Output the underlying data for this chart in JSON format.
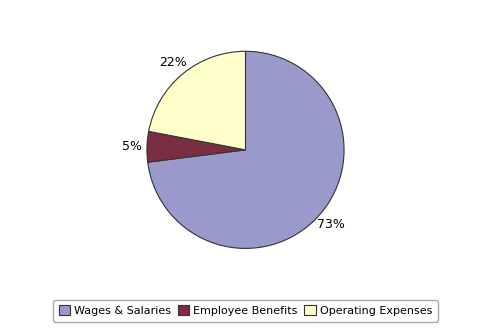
{
  "labels": [
    "Wages & Salaries",
    "Employee Benefits",
    "Operating Expenses"
  ],
  "values": [
    73,
    5,
    22
  ],
  "colors": [
    "#9999CC",
    "#7B2D42",
    "#FFFFCC"
  ],
  "edge_color": "#333333",
  "startangle": 90,
  "legend_fontsize": 8,
  "background_color": "#ffffff",
  "figsize": [
    4.91,
    3.33
  ],
  "dpi": 100,
  "pctdistance": 1.15
}
